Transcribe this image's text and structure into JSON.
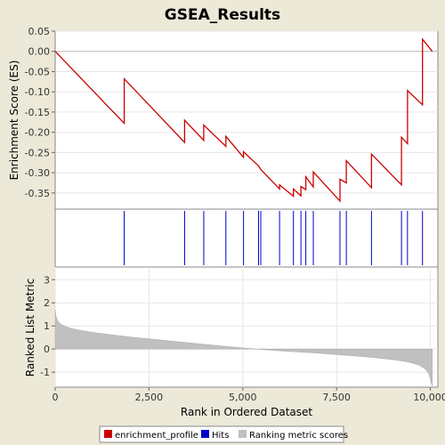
{
  "colors": {
    "background": "#ece9d8",
    "plot_bg": "#ffffff",
    "enrichment": "#cc0000",
    "hits": "#0000cc",
    "ranking": "#c0c0c0"
  },
  "chart_data": [
    {
      "type": "line",
      "title": "GSEA_Results",
      "ylabel": "Enrichment Score (ES)",
      "xlim": [
        0,
        10200
      ],
      "ylim": [
        -0.39,
        0.05
      ],
      "yticks": [
        0.05,
        0.0,
        -0.05,
        -0.1,
        -0.15,
        -0.2,
        -0.25,
        -0.3,
        -0.35
      ],
      "ytick_labels": [
        "0.05",
        "0.00",
        "-0.05",
        "-0.10",
        "-0.15",
        "-0.20",
        "-0.25",
        "-0.30",
        "-0.35"
      ],
      "series": [
        {
          "name": "enrichment_profile",
          "x": [
            0,
            1840,
            1840,
            3450,
            3450,
            3960,
            3960,
            4550,
            4550,
            5020,
            5020,
            5420,
            5480,
            5980,
            5980,
            6350,
            6350,
            6550,
            6550,
            6680,
            6680,
            6880,
            6880,
            7590,
            7590,
            7760,
            7760,
            8430,
            8430,
            9230,
            9230,
            9390,
            9390,
            9790,
            9790,
            10050
          ],
          "y": [
            0.0,
            -0.178,
            -0.068,
            -0.225,
            -0.17,
            -0.22,
            -0.182,
            -0.235,
            -0.21,
            -0.262,
            -0.248,
            -0.283,
            -0.292,
            -0.34,
            -0.33,
            -0.358,
            -0.34,
            -0.357,
            -0.334,
            -0.342,
            -0.31,
            -0.335,
            -0.298,
            -0.37,
            -0.316,
            -0.325,
            -0.27,
            -0.337,
            -0.254,
            -0.33,
            -0.212,
            -0.228,
            -0.097,
            -0.132,
            0.03,
            0.0
          ]
        }
      ]
    },
    {
      "type": "scatter",
      "series": [
        {
          "name": "Hits",
          "x": [
            1840,
            3450,
            3960,
            4550,
            5020,
            5420,
            5480,
            5980,
            6350,
            6550,
            6680,
            6880,
            7590,
            7760,
            8430,
            9230,
            9390,
            9790
          ]
        }
      ]
    },
    {
      "type": "area",
      "xlabel": "Rank in Ordered Dataset",
      "ylabel": "Ranked List Metric",
      "xlim": [
        0,
        10200
      ],
      "ylim": [
        -1.65,
        3.55
      ],
      "yticks": [
        3,
        2,
        1,
        0,
        -1
      ],
      "ytick_labels": [
        "3",
        "2",
        "1",
        "0",
        "-1"
      ],
      "xticks": [
        0,
        2500,
        5000,
        7500,
        10000
      ],
      "xtick_labels": [
        "0",
        "2,500",
        "5,000",
        "7,500",
        "10,000"
      ],
      "series": [
        {
          "name": "Ranking metric scores",
          "x": [
            0,
            20,
            60,
            120,
            200,
            300,
            450,
            700,
            1000,
            1500,
            2000,
            2500,
            3000,
            3500,
            4000,
            4500,
            5000,
            5500,
            6000,
            6500,
            7000,
            7500,
            8000,
            8500,
            9000,
            9300,
            9500,
            9700,
            9850,
            9950,
            10000,
            10050
          ],
          "y": [
            1.7,
            1.45,
            1.25,
            1.12,
            1.03,
            0.96,
            0.88,
            0.8,
            0.72,
            0.62,
            0.52,
            0.44,
            0.36,
            0.28,
            0.2,
            0.12,
            0.05,
            -0.02,
            -0.08,
            -0.13,
            -0.18,
            -0.24,
            -0.3,
            -0.37,
            -0.46,
            -0.53,
            -0.6,
            -0.7,
            -0.85,
            -1.05,
            -1.3,
            -1.6
          ]
        }
      ]
    }
  ],
  "legend": {
    "placement": "bottom",
    "items": [
      {
        "label": "enrichment_profile",
        "color": "#cc0000"
      },
      {
        "label": "Hits",
        "color": "#0000cc"
      },
      {
        "label": "Ranking metric scores",
        "color": "#c0c0c0"
      }
    ]
  }
}
